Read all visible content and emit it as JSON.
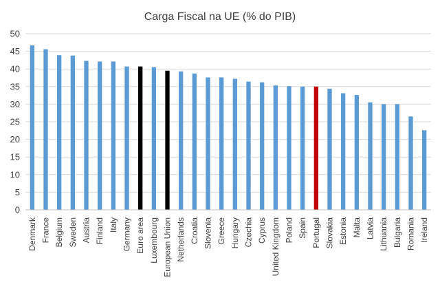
{
  "chart_data": {
    "type": "bar",
    "title": "Carga Fiscal na UE (% do PIB)",
    "xlabel": "",
    "ylabel": "",
    "ylim": [
      0,
      50
    ],
    "yticks": [
      "0",
      "5",
      "10",
      "15",
      "20",
      "25",
      "30",
      "35",
      "40",
      "45",
      "50"
    ],
    "grid": true,
    "legend": "none",
    "categories": [
      "Denmark",
      "France",
      "Belgium",
      "Sweden",
      "Austria",
      "Finland",
      "Italy",
      "Germany",
      "Euro area",
      "Luxembourg",
      "European Union",
      "Netherlands",
      "Croatia",
      "Slovenia",
      "Greece",
      "Hungary",
      "Czechia",
      "Cyprus",
      "United Kingdom",
      "Poland",
      "Spain",
      "Portugal",
      "Slovakia",
      "Estonia",
      "Malta",
      "Latvia",
      "Lithuania",
      "Bulgaria",
      "Romania",
      "Ireland"
    ],
    "values": [
      46.7,
      45.6,
      43.9,
      43.8,
      42.3,
      42.1,
      42.1,
      40.7,
      40.7,
      40.5,
      39.5,
      39.3,
      38.7,
      37.6,
      37.6,
      37.2,
      36.4,
      36.2,
      35.3,
      35.1,
      35.0,
      35.0,
      34.4,
      33.1,
      32.6,
      30.5,
      30.0,
      30.0,
      26.5,
      22.6
    ],
    "colors": {
      "default": "#5b9bd5",
      "Euro area": "#000000",
      "European Union": "#000000",
      "Portugal": "#c00000"
    }
  }
}
